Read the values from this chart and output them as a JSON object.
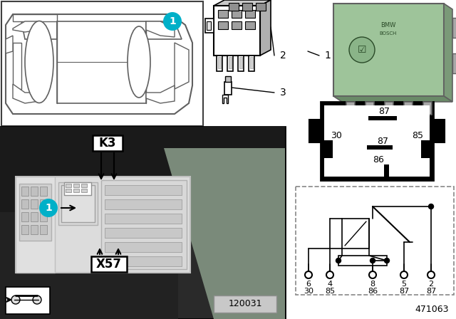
{
  "bg": "#ffffff",
  "teal": "#00b0c8",
  "relay_green": "#9ec49a",
  "photo_bg": "#2a2a2a",
  "photo_mid": "#555555",
  "photo_light": "#909090",
  "component_white": "#e8e8e8",
  "component_gray": "#d0d0d0",
  "k3_label": "K3",
  "x57_label": "X57",
  "fig_id": "471063",
  "photo_id": "120031",
  "car_border": "#606060",
  "pin_bg": "#000000"
}
